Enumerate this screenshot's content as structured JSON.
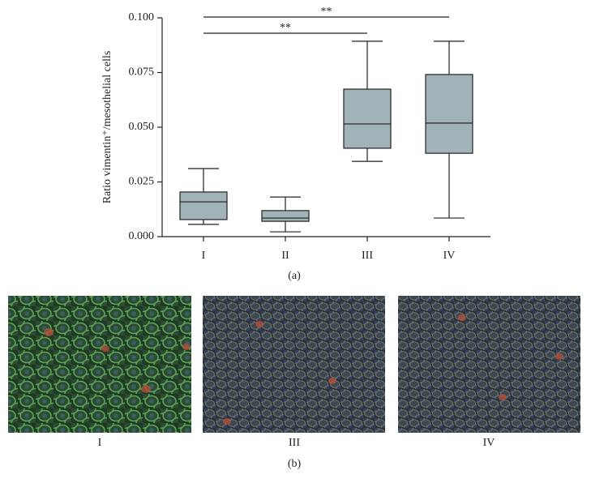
{
  "chart_data": {
    "type": "box",
    "ylabel": "Ratio vimentin⁺/mesothelial cells",
    "categories": [
      "I",
      "II",
      "III",
      "IV"
    ],
    "boxes": [
      {
        "low": 0.0056,
        "q1": 0.0078,
        "median": 0.0159,
        "q3": 0.0204,
        "high": 0.0311
      },
      {
        "low": 0.0022,
        "q1": 0.007,
        "median": 0.0085,
        "q3": 0.0119,
        "high": 0.0181
      },
      {
        "low": 0.0344,
        "q1": 0.0404,
        "median": 0.0515,
        "q3": 0.0674,
        "high": 0.0893
      },
      {
        "low": 0.0085,
        "q1": 0.0381,
        "median": 0.0519,
        "q3": 0.0741,
        "high": 0.0893
      }
    ],
    "color": "#a0b3b8",
    "ylim": [
      0,
      0.1
    ],
    "yticks": [
      {
        "value": 0,
        "label": "0.000"
      },
      {
        "value": 0.025,
        "label": "0.025"
      },
      {
        "value": 0.05,
        "label": "0.050"
      },
      {
        "value": 0.075,
        "label": "0.075"
      },
      {
        "value": 0.1,
        "label": "0.100"
      }
    ],
    "annotations": [
      {
        "text": "**",
        "between": [
          "I",
          "IV"
        ]
      },
      {
        "text": "**",
        "between": [
          "I",
          "III"
        ]
      }
    ],
    "panel_label": "(a)"
  },
  "micrographs": {
    "panel_label": "(b)",
    "images": [
      {
        "label": "I"
      },
      {
        "label": "III"
      },
      {
        "label": "IV"
      }
    ]
  }
}
